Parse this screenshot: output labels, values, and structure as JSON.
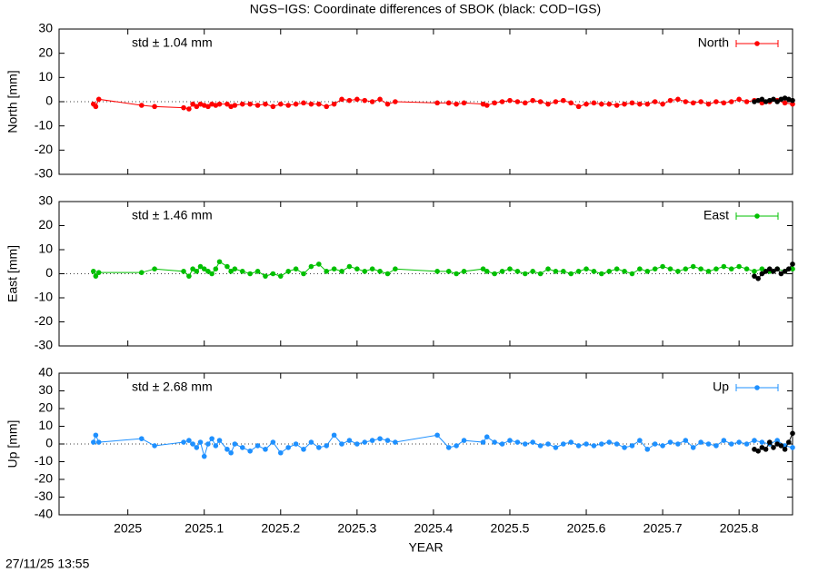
{
  "title": "NGS−IGS: Coordinate differences of SBOK (black: COD−IGS)",
  "footer": "27/11/25 13:55",
  "chart_data": [
    {
      "type": "line",
      "ylabel": "North [mm]",
      "annotation": "std ± 1.04 mm",
      "xlim": [
        2024.91,
        2025.87
      ],
      "xticks": [
        2025,
        2025.1,
        2025.2,
        2025.3,
        2025.4,
        2025.5,
        2025.6,
        2025.7,
        2025.8
      ],
      "ylim": [
        -30,
        30
      ],
      "yticks": [
        -30,
        -20,
        -10,
        0,
        10,
        20,
        30
      ],
      "legend": "upper right",
      "x": [
        2024.955,
        2024.958,
        2024.962,
        2025.018,
        2025.035,
        2025.073,
        2025.08,
        2025.085,
        2025.09,
        2025.095,
        2025.1,
        2025.105,
        2025.11,
        2025.115,
        2025.12,
        2025.13,
        2025.135,
        2025.14,
        2025.15,
        2025.16,
        2025.17,
        2025.18,
        2025.19,
        2025.2,
        2025.21,
        2025.22,
        2025.23,
        2025.24,
        2025.25,
        2025.26,
        2025.27,
        2025.28,
        2025.29,
        2025.3,
        2025.31,
        2025.32,
        2025.33,
        2025.34,
        2025.35,
        2025.405,
        2025.42,
        2025.43,
        2025.44,
        2025.465,
        2025.47,
        2025.48,
        2025.49,
        2025.5,
        2025.51,
        2025.52,
        2025.53,
        2025.54,
        2025.55,
        2025.56,
        2025.57,
        2025.58,
        2025.59,
        2025.6,
        2025.61,
        2025.62,
        2025.63,
        2025.64,
        2025.65,
        2025.66,
        2025.67,
        2025.68,
        2025.69,
        2025.7,
        2025.71,
        2025.72,
        2025.73,
        2025.74,
        2025.75,
        2025.76,
        2025.77,
        2025.78,
        2025.79,
        2025.8,
        2025.81,
        2025.82,
        2025.83,
        2025.84,
        2025.85,
        2025.86,
        2025.87
      ],
      "series": [
        {
          "name": "North",
          "color": "#ff0000",
          "values": [
            -1,
            -2,
            1,
            -1.5,
            -2,
            -2.5,
            -3,
            -1,
            -2,
            -1,
            -1.5,
            -2,
            -1,
            -1.5,
            -1,
            -1,
            -2,
            -1.5,
            -1,
            -1,
            -1.5,
            -1,
            -2,
            -1,
            -1.5,
            -1,
            -0.5,
            -1,
            -1,
            -2,
            -1,
            1,
            0.5,
            1,
            0.5,
            0,
            1,
            -1,
            0,
            -0.5,
            -0.5,
            -1,
            -0.5,
            -1,
            -1.5,
            -0.5,
            0,
            0.5,
            0,
            -0.5,
            0.5,
            0,
            -1,
            0,
            0.5,
            -0.5,
            -2,
            -1,
            -0.5,
            -1,
            -1,
            -1.5,
            -1,
            -0.5,
            -1,
            -1,
            0,
            -1,
            0.5,
            1,
            0,
            -0.5,
            0,
            -1,
            0,
            -0.5,
            0,
            1,
            0,
            0.5,
            -0.5,
            0,
            0.5,
            -0.5,
            -1
          ]
        },
        {
          "color": "#000000",
          "x": [
            2025.82,
            2025.825,
            2025.83,
            2025.835,
            2025.84,
            2025.845,
            2025.85,
            2025.855,
            2025.86,
            2025.865,
            2025.87
          ],
          "values": [
            0,
            0.5,
            1,
            0,
            0.5,
            1,
            0,
            1,
            1.5,
            1,
            0.5
          ]
        }
      ]
    },
    {
      "type": "line",
      "ylabel": "East [mm]",
      "annotation": "std ± 1.46 mm",
      "xlim": [
        2024.91,
        2025.87
      ],
      "xticks": [
        2025,
        2025.1,
        2025.2,
        2025.3,
        2025.4,
        2025.5,
        2025.6,
        2025.7,
        2025.8
      ],
      "ylim": [
        -30,
        30
      ],
      "yticks": [
        -30,
        -20,
        -10,
        0,
        10,
        20,
        30
      ],
      "legend": "upper right",
      "x": [
        2024.955,
        2024.958,
        2024.962,
        2025.018,
        2025.035,
        2025.073,
        2025.08,
        2025.085,
        2025.09,
        2025.095,
        2025.1,
        2025.105,
        2025.11,
        2025.115,
        2025.12,
        2025.13,
        2025.135,
        2025.14,
        2025.15,
        2025.16,
        2025.17,
        2025.18,
        2025.19,
        2025.2,
        2025.21,
        2025.22,
        2025.23,
        2025.24,
        2025.25,
        2025.26,
        2025.27,
        2025.28,
        2025.29,
        2025.3,
        2025.31,
        2025.32,
        2025.33,
        2025.34,
        2025.35,
        2025.405,
        2025.42,
        2025.43,
        2025.44,
        2025.465,
        2025.47,
        2025.48,
        2025.49,
        2025.5,
        2025.51,
        2025.52,
        2025.53,
        2025.54,
        2025.55,
        2025.56,
        2025.57,
        2025.58,
        2025.59,
        2025.6,
        2025.61,
        2025.62,
        2025.63,
        2025.64,
        2025.65,
        2025.66,
        2025.67,
        2025.68,
        2025.69,
        2025.7,
        2025.71,
        2025.72,
        2025.73,
        2025.74,
        2025.75,
        2025.76,
        2025.77,
        2025.78,
        2025.79,
        2025.8,
        2025.81,
        2025.82,
        2025.83,
        2025.84,
        2025.85,
        2025.86,
        2025.87
      ],
      "series": [
        {
          "name": "East",
          "color": "#00c000",
          "values": [
            1,
            -1,
            0.5,
            0.5,
            2,
            1,
            -1,
            2,
            1,
            3,
            2,
            1,
            0,
            2,
            5,
            3,
            1,
            2,
            1,
            0,
            1,
            -1,
            0,
            -1,
            1,
            2,
            0,
            3,
            4,
            1,
            2,
            1,
            3,
            2,
            1,
            2,
            1,
            0,
            2,
            1,
            1,
            0,
            1,
            2,
            1,
            0,
            1,
            2,
            1,
            0,
            1,
            0,
            2,
            1,
            1,
            0,
            1,
            2,
            1,
            0,
            1,
            2,
            1,
            0,
            2,
            1,
            2,
            3,
            2,
            1,
            2,
            3,
            2,
            1,
            2,
            3,
            2,
            3,
            2,
            1,
            2,
            1,
            2,
            1,
            2
          ]
        },
        {
          "color": "#000000",
          "x": [
            2025.82,
            2025.825,
            2025.83,
            2025.835,
            2025.84,
            2025.845,
            2025.85,
            2025.855,
            2025.86,
            2025.865,
            2025.87
          ],
          "values": [
            -1,
            -2,
            0,
            1,
            2,
            1,
            2,
            0,
            1,
            2,
            4
          ]
        }
      ]
    },
    {
      "type": "line",
      "ylabel": "Up [mm]",
      "annotation": "std ± 2.68 mm",
      "xlabel": "YEAR",
      "xlim": [
        2024.91,
        2025.87
      ],
      "xticks": [
        2025,
        2025.1,
        2025.2,
        2025.3,
        2025.4,
        2025.5,
        2025.6,
        2025.7,
        2025.8
      ],
      "ylim": [
        -40,
        40
      ],
      "yticks": [
        -40,
        -30,
        -20,
        -10,
        0,
        10,
        20,
        30,
        40
      ],
      "legend": "upper right",
      "x": [
        2024.955,
        2024.958,
        2024.962,
        2025.018,
        2025.035,
        2025.073,
        2025.08,
        2025.085,
        2025.09,
        2025.095,
        2025.1,
        2025.105,
        2025.11,
        2025.115,
        2025.12,
        2025.13,
        2025.135,
        2025.14,
        2025.15,
        2025.16,
        2025.17,
        2025.18,
        2025.19,
        2025.2,
        2025.21,
        2025.22,
        2025.23,
        2025.24,
        2025.25,
        2025.26,
        2025.27,
        2025.28,
        2025.29,
        2025.3,
        2025.31,
        2025.32,
        2025.33,
        2025.34,
        2025.35,
        2025.405,
        2025.42,
        2025.43,
        2025.44,
        2025.465,
        2025.47,
        2025.48,
        2025.49,
        2025.5,
        2025.51,
        2025.52,
        2025.53,
        2025.54,
        2025.55,
        2025.56,
        2025.57,
        2025.58,
        2025.59,
        2025.6,
        2025.61,
        2025.62,
        2025.63,
        2025.64,
        2025.65,
        2025.66,
        2025.67,
        2025.68,
        2025.69,
        2025.7,
        2025.71,
        2025.72,
        2025.73,
        2025.74,
        2025.75,
        2025.76,
        2025.77,
        2025.78,
        2025.79,
        2025.8,
        2025.81,
        2025.82,
        2025.83,
        2025.84,
        2025.85,
        2025.86,
        2025.87
      ],
      "series": [
        {
          "name": "Up",
          "color": "#1e90ff",
          "values": [
            1,
            5,
            1,
            3,
            -1,
            1,
            2,
            0,
            -2,
            1,
            -7,
            0,
            3,
            -1,
            2,
            -3,
            -5,
            0,
            -2,
            -4,
            -1,
            -3,
            1,
            -5,
            -2,
            0,
            -3,
            1,
            -2,
            -1,
            5,
            0,
            2,
            0,
            1,
            2,
            3,
            2,
            1,
            5,
            -2,
            -1,
            2,
            1,
            4,
            1,
            0,
            2,
            1,
            0,
            1,
            -1,
            0,
            -2,
            0,
            1,
            -1,
            0,
            -1,
            0,
            1,
            0,
            -2,
            -1,
            2,
            -3,
            0,
            -1,
            1,
            0,
            2,
            -2,
            1,
            0,
            -1,
            2,
            0,
            1,
            0,
            2,
            1,
            0,
            2,
            -1,
            -2
          ]
        },
        {
          "color": "#000000",
          "x": [
            2025.82,
            2025.825,
            2025.83,
            2025.835,
            2025.84,
            2025.845,
            2025.85,
            2025.855,
            2025.86,
            2025.865,
            2025.87
          ],
          "values": [
            -3,
            -4,
            -2,
            -3,
            1,
            -2,
            0,
            -1,
            -3,
            1,
            6
          ]
        }
      ]
    }
  ]
}
